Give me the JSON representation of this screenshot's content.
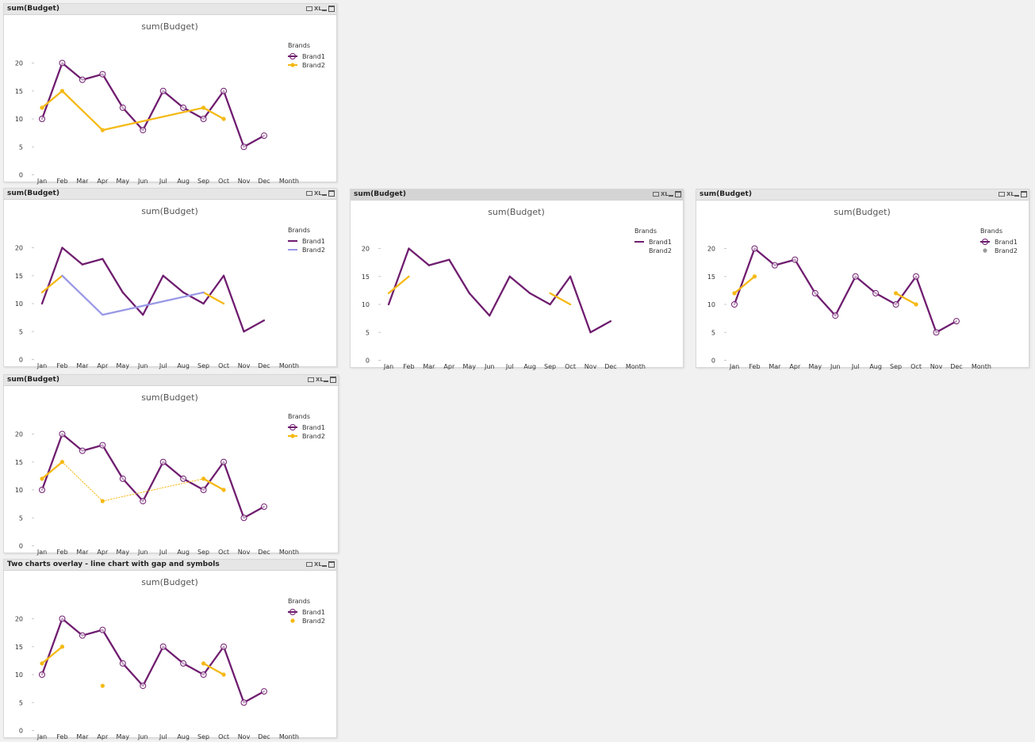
{
  "panels": [
    {
      "caption": "sum(Budget)",
      "active": false,
      "chart_data": {
        "type": "line",
        "title": "sum(Budget)",
        "xlabel": "Month",
        "ylabel": "",
        "categories": [
          "Jan",
          "Feb",
          "Mar",
          "Apr",
          "May",
          "Jun",
          "Jul",
          "Aug",
          "Sep",
          "Oct",
          "Nov",
          "Dec"
        ],
        "yticks": [
          0,
          5,
          10,
          15,
          20
        ],
        "ylim": [
          0,
          22
        ],
        "legend_title": "Brands",
        "series": [
          {
            "name": "Brand1",
            "color": "#6f1d6f",
            "values": [
              10,
              20,
              17,
              18,
              12,
              8,
              15,
              12,
              10,
              15,
              5,
              7
            ],
            "line": "solid",
            "marker": "circle",
            "legend_line": true,
            "legend_marker": "circle"
          },
          {
            "name": "Brand2",
            "color": "#f5b915",
            "values": [
              12,
              15,
              null,
              8,
              null,
              null,
              null,
              null,
              12,
              10,
              null,
              null
            ],
            "line": "solid",
            "marker": "dot",
            "connect_gaps": true,
            "legend_line": true,
            "legend_marker": "dot"
          }
        ]
      }
    },
    {
      "caption": "sum(Budget)",
      "active": false,
      "chart_data": {
        "type": "line",
        "title": "sum(Budget)",
        "xlabel": "Month",
        "ylabel": "",
        "categories": [
          "Jan",
          "Feb",
          "Mar",
          "Apr",
          "May",
          "Jun",
          "Jul",
          "Aug",
          "Sep",
          "Oct",
          "Nov",
          "Dec"
        ],
        "yticks": [
          0,
          5,
          10,
          15,
          20
        ],
        "ylim": [
          0,
          22
        ],
        "legend_title": "Brands",
        "series": [
          {
            "name": "Brand1",
            "color": "#6f1d6f",
            "values": [
              10,
              20,
              17,
              18,
              12,
              8,
              15,
              12,
              10,
              15,
              5,
              7
            ],
            "line": "solid",
            "marker": "none",
            "legend_line": true,
            "legend_marker": "none"
          },
          {
            "name": "Brand2",
            "color": "#9999e6",
            "values": [
              12,
              15,
              null,
              8,
              null,
              null,
              null,
              null,
              12,
              10,
              null,
              null
            ],
            "line": "solid",
            "marker": "none",
            "connect_gaps": true,
            "seg_color": "#f5b915",
            "legend_line": true,
            "legend_marker": "none"
          }
        ]
      }
    },
    {
      "caption": "sum(Budget)",
      "active": true,
      "chart_data": {
        "type": "line",
        "title": "sum(Budget)",
        "xlabel": "Month",
        "ylabel": "",
        "categories": [
          "Jan",
          "Feb",
          "Mar",
          "Apr",
          "May",
          "Jun",
          "Jul",
          "Aug",
          "Sep",
          "Oct",
          "Nov",
          "Dec"
        ],
        "yticks": [
          0,
          5,
          10,
          15,
          20
        ],
        "ylim": [
          0,
          22
        ],
        "legend_title": "Brands",
        "series": [
          {
            "name": "Brand1",
            "color": "#6f1d6f",
            "values": [
              10,
              20,
              17,
              18,
              12,
              8,
              15,
              12,
              10,
              15,
              5,
              7
            ],
            "line": "solid",
            "marker": "none",
            "legend_line": true,
            "legend_marker": "none"
          },
          {
            "name": "Brand2",
            "color": "#f5b915",
            "values": [
              12,
              15,
              null,
              null,
              null,
              null,
              null,
              null,
              12,
              10,
              null,
              null
            ],
            "line": "solid",
            "marker": "none",
            "connect_gaps": false,
            "legend_line": false,
            "legend_marker": "none"
          }
        ]
      }
    },
    {
      "caption": "sum(Budget)",
      "active": false,
      "chart_data": {
        "type": "line",
        "title": "sum(Budget)",
        "xlabel": "Month",
        "ylabel": "",
        "categories": [
          "Jan",
          "Feb",
          "Mar",
          "Apr",
          "May",
          "Jun",
          "Jul",
          "Aug",
          "Sep",
          "Oct",
          "Nov",
          "Dec"
        ],
        "yticks": [
          0,
          5,
          10,
          15,
          20
        ],
        "ylim": [
          0,
          22
        ],
        "legend_title": "Brands",
        "series": [
          {
            "name": "Brand1",
            "color": "#6f1d6f",
            "values": [
              10,
              20,
              17,
              18,
              12,
              8,
              15,
              12,
              10,
              15,
              5,
              7
            ],
            "line": "solid",
            "marker": "circle",
            "legend_line": true,
            "legend_marker": "circle"
          },
          {
            "name": "Brand2",
            "color": "#f5b915",
            "values": [
              12,
              15,
              null,
              null,
              null,
              null,
              null,
              null,
              12,
              10,
              null,
              null
            ],
            "line": "solid",
            "marker": "dot",
            "connect_gaps": false,
            "legend_line": false,
            "legend_marker": "dot",
            "legend_color": "#999999"
          }
        ]
      }
    },
    {
      "caption": "sum(Budget)",
      "active": false,
      "chart_data": {
        "type": "line",
        "title": "sum(Budget)",
        "xlabel": "Month",
        "ylabel": "",
        "categories": [
          "Jan",
          "Feb",
          "Mar",
          "Apr",
          "May",
          "Jun",
          "Jul",
          "Aug",
          "Sep",
          "Oct",
          "Nov",
          "Dec"
        ],
        "yticks": [
          0,
          5,
          10,
          15,
          20
        ],
        "ylim": [
          0,
          22
        ],
        "legend_title": "Brands",
        "series": [
          {
            "name": "Brand1",
            "color": "#6f1d6f",
            "values": [
              10,
              20,
              17,
              18,
              12,
              8,
              15,
              12,
              10,
              15,
              5,
              7
            ],
            "line": "solid",
            "marker": "circle",
            "legend_line": true,
            "legend_marker": "circle"
          },
          {
            "name": "Brand2",
            "color": "#f5b915",
            "values": [
              12,
              15,
              null,
              8,
              null,
              null,
              null,
              null,
              12,
              10,
              null,
              null
            ],
            "line": "solid",
            "marker": "dot",
            "connect_gaps": true,
            "gap_style": "dotted",
            "legend_line": true,
            "legend_marker": "dot"
          }
        ]
      }
    },
    {
      "caption": "Two charts overlay - line chart with gap and symbols",
      "active": false,
      "chart_data": {
        "type": "line",
        "title": "sum(Budget)",
        "xlabel": "Month",
        "ylabel": "",
        "categories": [
          "Jan",
          "Feb",
          "Mar",
          "Apr",
          "May",
          "Jun",
          "Jul",
          "Aug",
          "Sep",
          "Oct",
          "Nov",
          "Dec"
        ],
        "yticks": [
          0,
          5,
          10,
          15,
          20
        ],
        "ylim": [
          0,
          22
        ],
        "legend_title": "Brands",
        "series": [
          {
            "name": "Brand1",
            "color": "#6f1d6f",
            "values": [
              10,
              20,
              17,
              18,
              12,
              8,
              15,
              12,
              10,
              15,
              5,
              7
            ],
            "line": "solid",
            "marker": "circle",
            "legend_line": true,
            "legend_marker": "circle"
          },
          {
            "name": "Brand2",
            "color": "#f5b915",
            "values": [
              12,
              15,
              null,
              8,
              null,
              null,
              null,
              null,
              12,
              10,
              null,
              null
            ],
            "line": "solid",
            "marker": "dot",
            "connect_gaps": false,
            "legend_line": false,
            "legend_marker": "dot"
          }
        ]
      }
    }
  ]
}
